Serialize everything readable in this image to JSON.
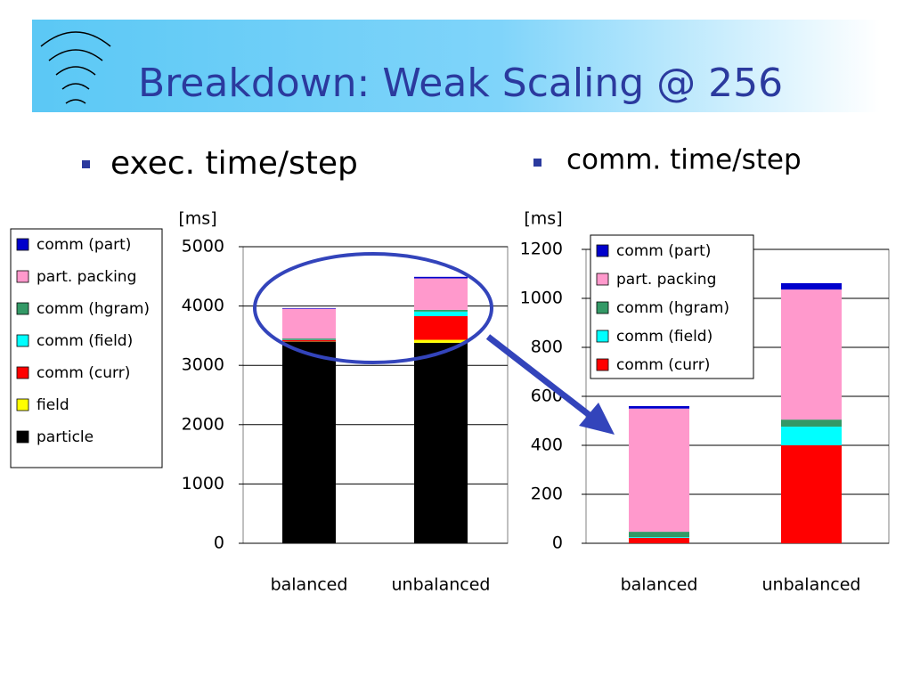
{
  "slide_title": "Breakdown: Weak Scaling @ 256",
  "chart_data": [
    {
      "type": "stacked_bar",
      "title": "exec. time/step",
      "y_label": "[ms]",
      "categories": [
        "balanced",
        "unbalanced"
      ],
      "series": [
        {
          "name": "particle",
          "color": "#000000",
          "values": [
            3400,
            3380
          ]
        },
        {
          "name": "field",
          "color": "#ffff00",
          "values": [
            5,
            50
          ]
        },
        {
          "name": "comm (curr)",
          "color": "#ff0000",
          "values": [
            22,
            400
          ]
        },
        {
          "name": "comm (field)",
          "color": "#00ffff",
          "values": [
            3,
            76
          ]
        },
        {
          "name": "comm (hgram)",
          "color": "#339966",
          "values": [
            22,
            29
          ]
        },
        {
          "name": "part. packing",
          "color": "#ff99cc",
          "values": [
            503,
            531
          ]
        },
        {
          "name": "comm (part)",
          "color": "#0000cc",
          "values": [
            10,
            26
          ]
        }
      ],
      "ylim": [
        0,
        5000
      ],
      "yticks": [
        0,
        1000,
        2000,
        3000,
        4000,
        5000
      ],
      "grid": true,
      "legend": "outside left"
    },
    {
      "type": "stacked_bar",
      "title": "comm. time/step",
      "y_label": "[ms]",
      "categories": [
        "balanced",
        "unbalanced"
      ],
      "series": [
        {
          "name": "comm (curr)",
          "color": "#ff0000",
          "values": [
            22,
            400
          ]
        },
        {
          "name": "comm (field)",
          "color": "#00ffff",
          "values": [
            3,
            76
          ]
        },
        {
          "name": "comm (hgram)",
          "color": "#339966",
          "values": [
            22,
            29
          ]
        },
        {
          "name": "part. packing",
          "color": "#ff99cc",
          "values": [
            503,
            531
          ]
        },
        {
          "name": "comm (part)",
          "color": "#0000cc",
          "values": [
            10,
            26
          ]
        }
      ],
      "ylim": [
        0,
        1200
      ],
      "yticks": [
        0,
        200,
        400,
        600,
        800,
        1000,
        1200
      ],
      "grid": true,
      "legend": "upper left"
    }
  ]
}
